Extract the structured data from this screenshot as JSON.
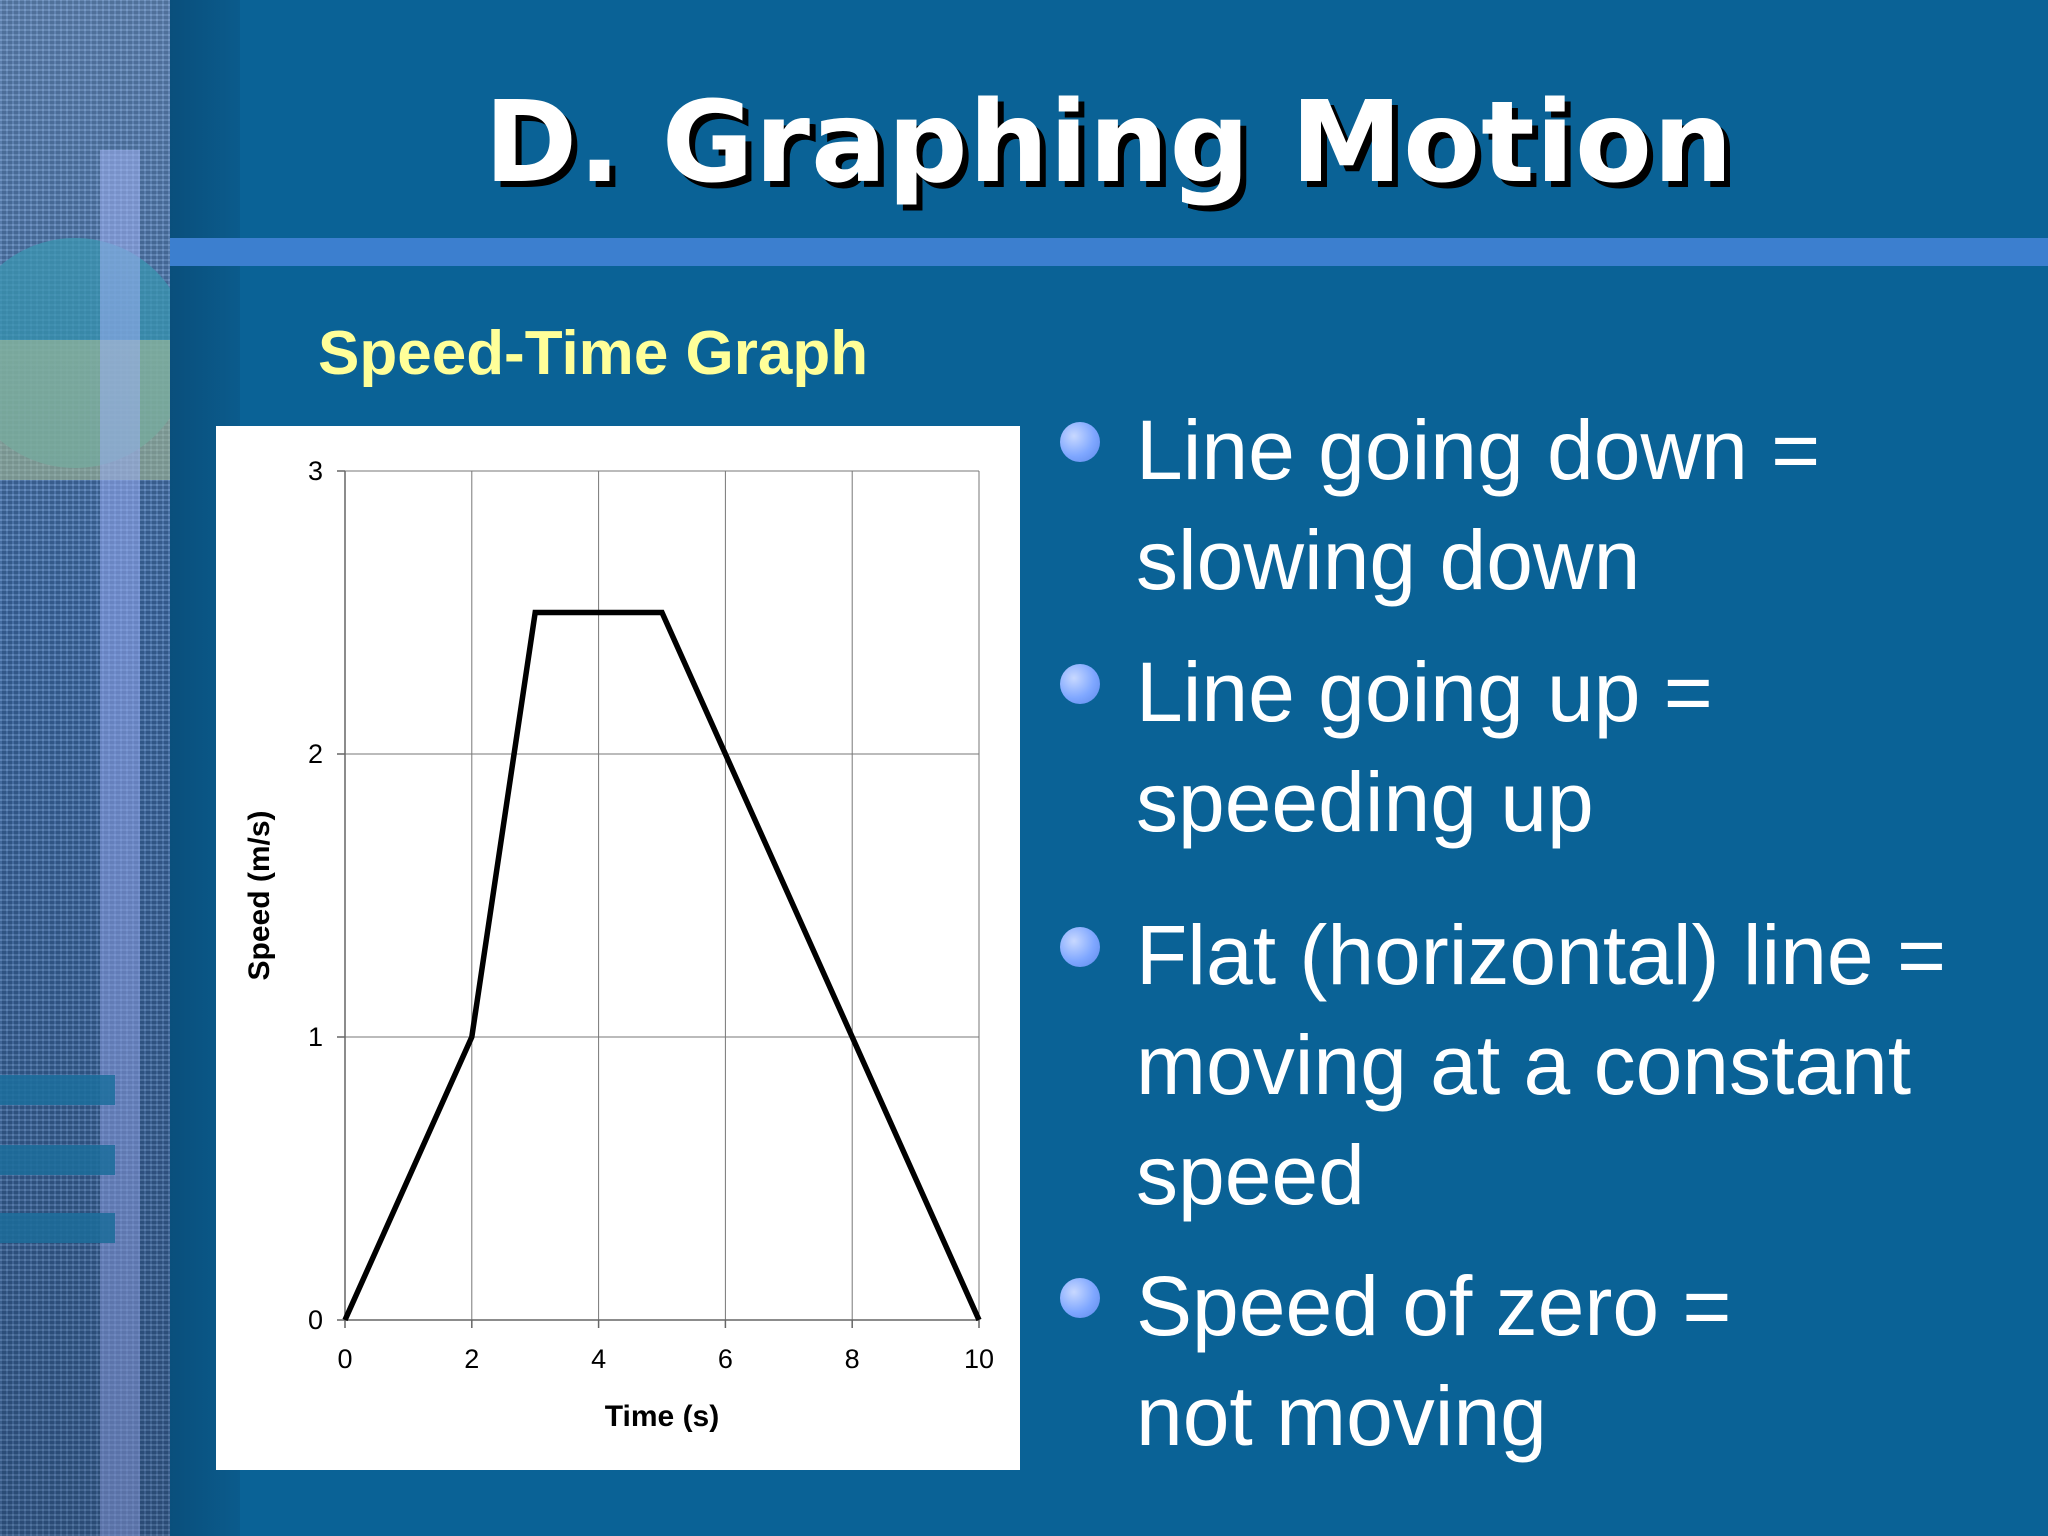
{
  "slide": {
    "title": "D. Graphing Motion",
    "subtitle": "Speed-Time Graph",
    "accent_color": "#ffff99",
    "background_color": "#0a6296"
  },
  "bullets": [
    {
      "line1": "Line going down =",
      "line2": "slowing down"
    },
    {
      "line1": "Line going up =",
      "line2": "speeding up"
    },
    {
      "line1": "Flat (horizontal) line =",
      "line2": "moving at a constant",
      "line3": "speed"
    },
    {
      "line1": "Speed of zero =",
      "line2": "not moving"
    }
  ],
  "chart_data": {
    "type": "line",
    "title": "",
    "xlabel": "Time (s)",
    "ylabel": "Speed (m/s)",
    "xlim": [
      0,
      10
    ],
    "ylim": [
      0,
      3
    ],
    "x_ticks": [
      "0",
      "2",
      "4",
      "6",
      "8",
      "10"
    ],
    "y_ticks": [
      "0",
      "1",
      "2",
      "3"
    ],
    "grid": true,
    "series": [
      {
        "x": [
          0,
          2,
          3,
          5,
          10
        ],
        "y": [
          0,
          1,
          2.5,
          2.5,
          0
        ]
      }
    ]
  }
}
